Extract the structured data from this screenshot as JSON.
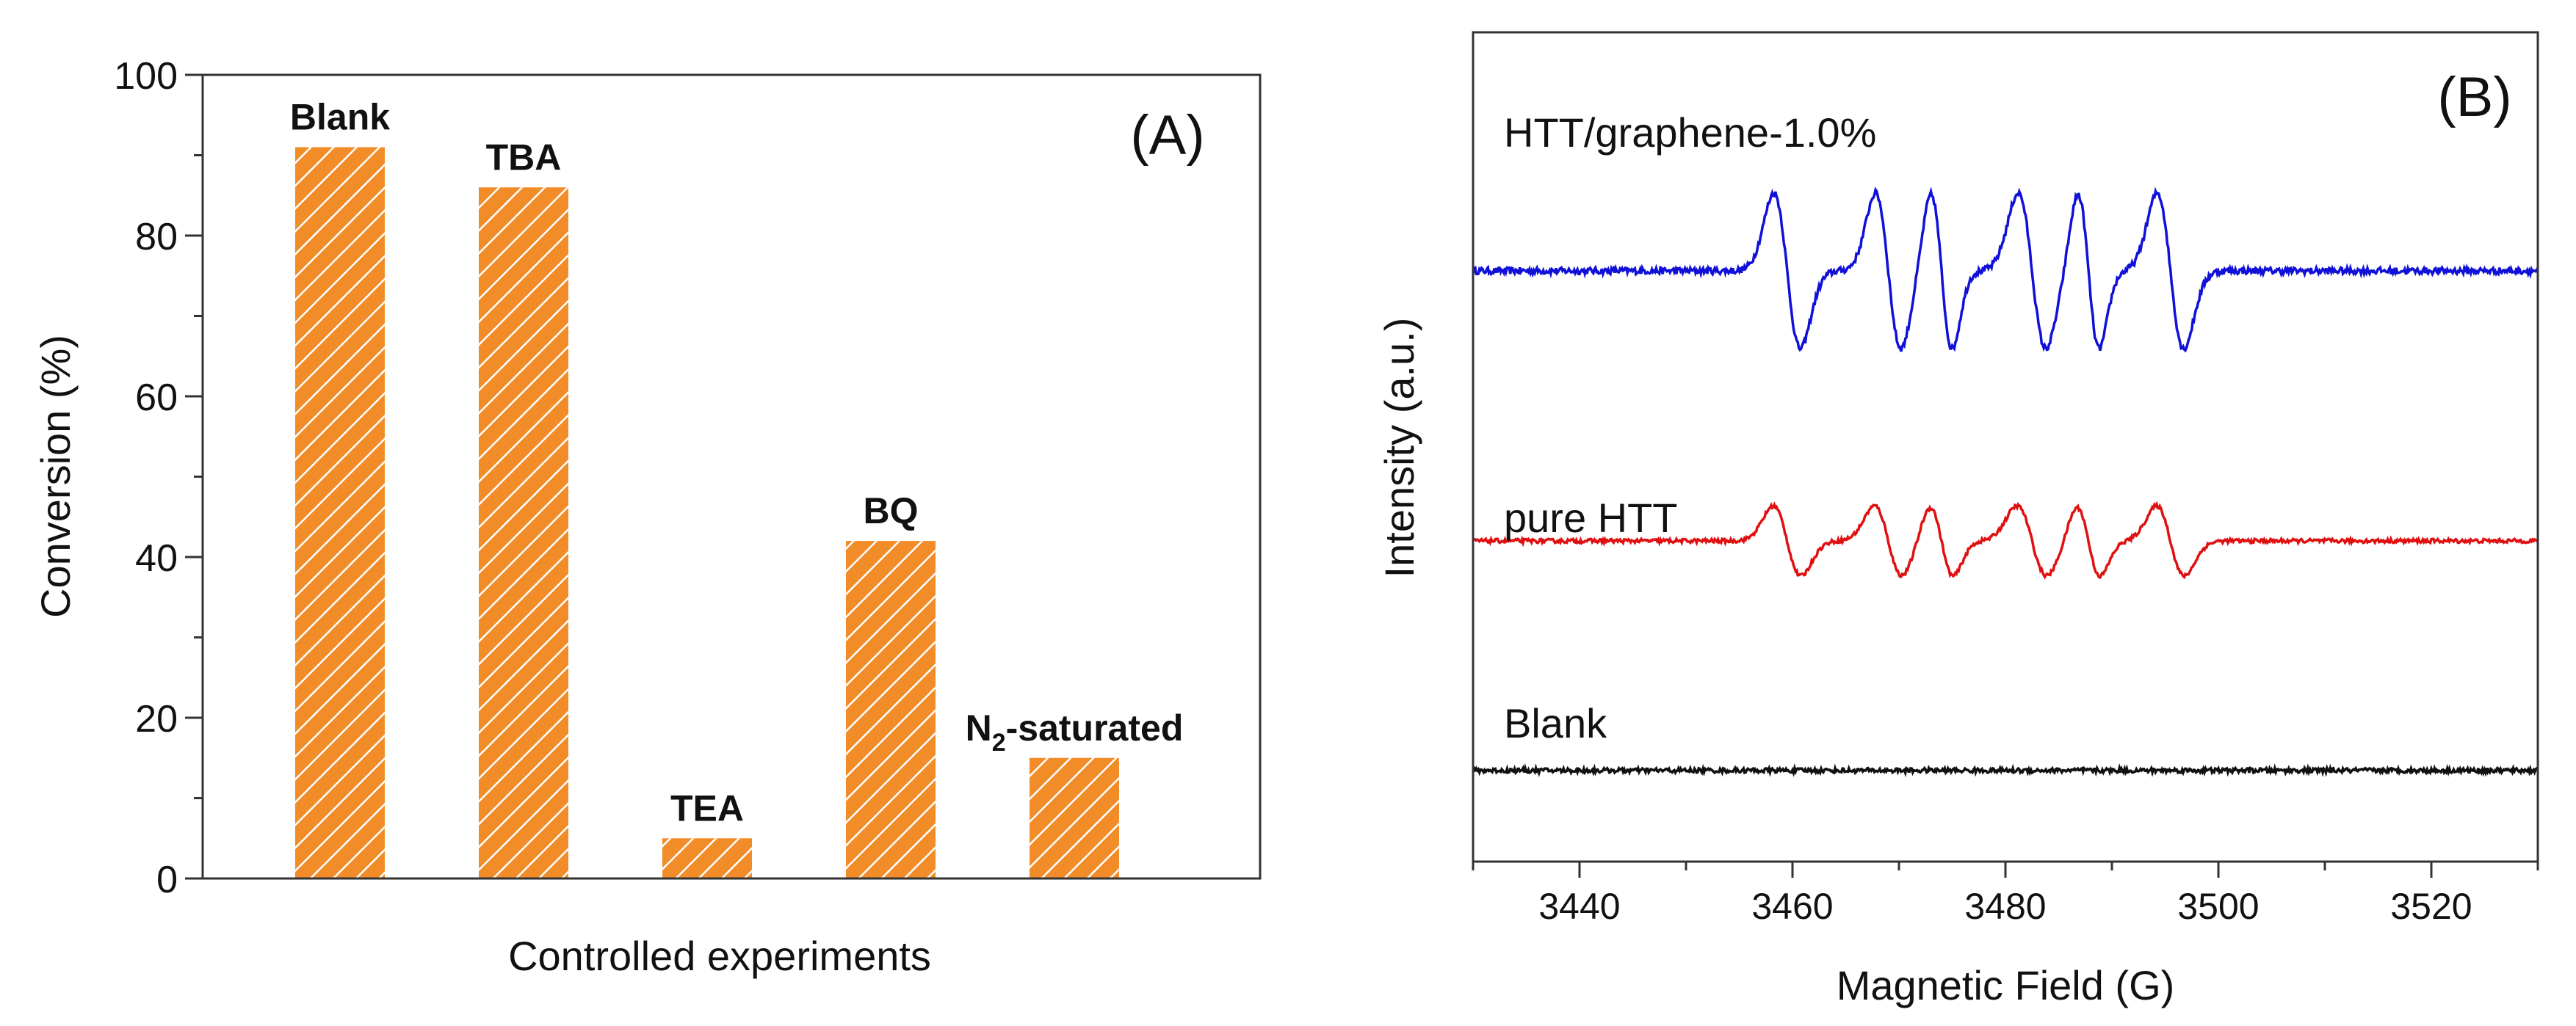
{
  "chart_data": [
    {
      "type": "bar",
      "panel": "(A)",
      "xlabel": "Controlled experiments",
      "ylabel": "Conversion (%)",
      "ylim": [
        0,
        100
      ],
      "yticks": [
        0,
        20,
        40,
        60,
        80,
        100
      ],
      "ytick_labels": [
        "0",
        "20",
        "40",
        "60",
        "80",
        "100"
      ],
      "bar_color": "#f28c28",
      "hatch_color": "#ffffff",
      "categories": [
        "Blank",
        "TBA",
        "TEA",
        "BQ",
        "N2-saturated"
      ],
      "category_labels": [
        {
          "main": "Blank",
          "sub": "",
          "rest": ""
        },
        {
          "main": "TBA",
          "sub": "",
          "rest": ""
        },
        {
          "main": "TEA",
          "sub": "",
          "rest": ""
        },
        {
          "main": "BQ",
          "sub": "",
          "rest": ""
        },
        {
          "main": "N",
          "sub": "2",
          "rest": "-saturated"
        }
      ],
      "values": [
        91,
        86,
        5,
        42,
        15
      ]
    },
    {
      "type": "line",
      "panel": "(B)",
      "xlabel": "Magnetic Field (G)",
      "ylabel": "Intensity (a.u.)",
      "xlim": [
        3430,
        3530
      ],
      "xticks": [
        3440,
        3460,
        3480,
        3500,
        3520
      ],
      "xtick_labels": [
        "3440",
        "3460",
        "3480",
        "3500",
        "3520"
      ],
      "series": [
        {
          "name": "HTT/graphene-1.0%",
          "color": "#1010d8",
          "baseline": 8.0,
          "amplitude": 1.0,
          "peaks": [
            {
              "center": 3459.5,
              "width": 1.25
            },
            {
              "center": 3469.0,
              "width": 1.2
            },
            {
              "center": 3474.0,
              "width": 1.0
            },
            {
              "center": 3482.5,
              "width": 1.3
            },
            {
              "center": 3487.8,
              "width": 1.0
            },
            {
              "center": 3495.5,
              "width": 1.25
            }
          ],
          "noise": 0.05
        },
        {
          "name": "pure HTT",
          "color": "#e01010",
          "baseline": 4.0,
          "amplitude": 0.45,
          "peaks": [
            {
              "center": 3459.5,
              "width": 1.3
            },
            {
              "center": 3469.0,
              "width": 1.3
            },
            {
              "center": 3474.0,
              "width": 1.1
            },
            {
              "center": 3482.5,
              "width": 1.4
            },
            {
              "center": 3487.8,
              "width": 1.1
            },
            {
              "center": 3495.5,
              "width": 1.3
            }
          ],
          "noise": 0.03
        },
        {
          "name": "Blank",
          "color": "#111111",
          "baseline": 0.6,
          "amplitude": 0.0,
          "peaks": [],
          "noise": 0.035
        }
      ]
    }
  ]
}
